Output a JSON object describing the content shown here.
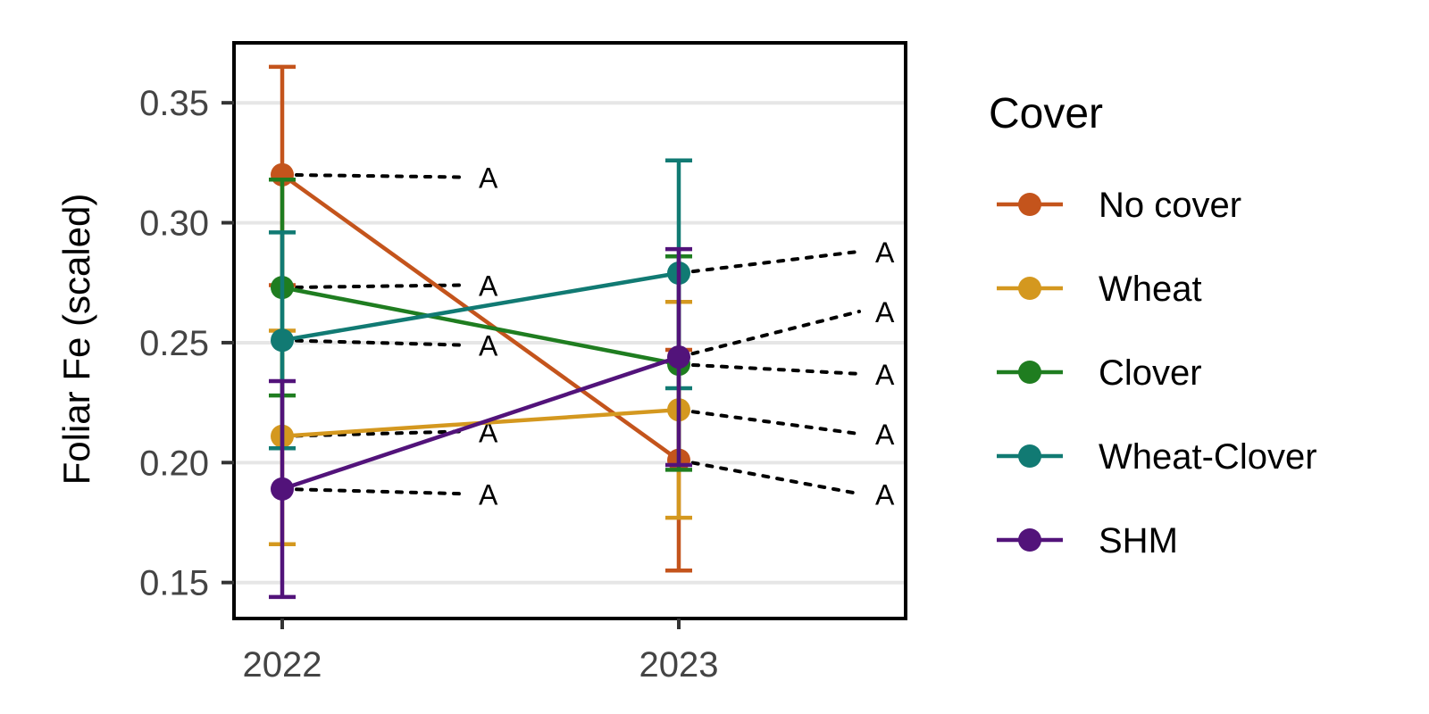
{
  "chart_data": {
    "type": "line",
    "ylabel": "Foliar Fe (scaled)",
    "xlabel": "",
    "categories": [
      "2022",
      "2023"
    ],
    "ylim": [
      0.135,
      0.375
    ],
    "yticks": [
      "0.15",
      "0.20",
      "0.25",
      "0.30",
      "0.35"
    ],
    "grid": "horizontal",
    "legend": {
      "title": "Cover",
      "placement": "right"
    },
    "series": [
      {
        "name": "No cover",
        "color": "#c4541c",
        "values": [
          0.32,
          0.201
        ],
        "lower": [
          0.274,
          0.155
        ],
        "upper": [
          0.365,
          0.247
        ],
        "letters": [
          "A",
          "A"
        ],
        "letter_y": [
          0.319,
          0.187
        ]
      },
      {
        "name": "Wheat",
        "color": "#d4981f",
        "values": [
          0.211,
          0.222
        ],
        "lower": [
          0.166,
          0.177
        ],
        "upper": [
          0.255,
          0.267
        ],
        "letters": [
          "A",
          "A"
        ],
        "letter_y": [
          0.213,
          0.212
        ]
      },
      {
        "name": "Clover",
        "color": "#1f7d20",
        "values": [
          0.273,
          0.241
        ],
        "lower": [
          0.228,
          0.197
        ],
        "upper": [
          0.318,
          0.286
        ],
        "letters": [
          "A",
          "A"
        ],
        "letter_y": [
          0.274,
          0.237
        ]
      },
      {
        "name": "Wheat-Clover",
        "color": "#117a73",
        "values": [
          0.251,
          0.279
        ],
        "lower": [
          0.206,
          0.231
        ],
        "upper": [
          0.296,
          0.326
        ],
        "letters": [
          "A",
          "A"
        ],
        "letter_y": [
          0.249,
          0.288
        ]
      },
      {
        "name": "SHM",
        "color": "#52137a",
        "values": [
          0.189,
          0.244
        ],
        "lower": [
          0.144,
          0.199
        ],
        "upper": [
          0.234,
          0.289
        ],
        "letters": [
          "A",
          "A"
        ],
        "letter_y": [
          0.187,
          0.263
        ]
      }
    ]
  }
}
